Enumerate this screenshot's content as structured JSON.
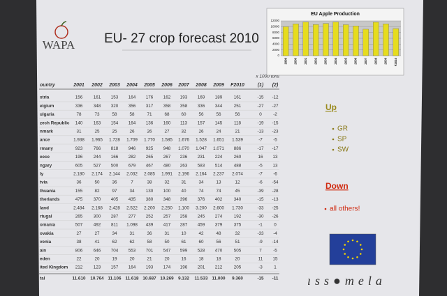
{
  "logo": "WAPA",
  "title": "EU- 27 crop forecast 2010",
  "unit_note": "x 1000 tons",
  "table": {
    "header": [
      "ountry",
      "2001",
      "2002",
      "2003",
      "2004",
      "2005",
      "2006",
      "2007",
      "2008",
      "2009",
      "F2010",
      "(1)",
      "(2)"
    ],
    "rows": [
      [
        "stria",
        "156",
        "161",
        "153",
        "164",
        "176",
        "162",
        "193",
        "169",
        "189",
        "161",
        "-15",
        "-12"
      ],
      [
        "elgium",
        "336",
        "348",
        "320",
        "356",
        "317",
        "358",
        "358",
        "336",
        "344",
        "251",
        "-27",
        "-27"
      ],
      [
        "ulgaria",
        "78",
        "73",
        "58",
        "58",
        "71",
        "68",
        "60",
        "56",
        "56",
        "56",
        "0",
        "-2"
      ],
      [
        "zech Republic",
        "140",
        "163",
        "154",
        "164",
        "136",
        "160",
        "113",
        "157",
        "145",
        "118",
        "-19",
        "-15"
      ],
      [
        "nmark",
        "31",
        "25",
        "25",
        "26",
        "26",
        "27",
        "32",
        "26",
        "24",
        "21",
        "-13",
        "-23"
      ],
      [
        "ance",
        "1.938",
        "1.965",
        "1.728",
        "1.709",
        "1.770",
        "1.585",
        "1.676",
        "1.528",
        "1.651",
        "1.539",
        "-7",
        "-5"
      ],
      [
        "rmany",
        "923",
        "766",
        "818",
        "946",
        "925",
        "948",
        "1.070",
        "1.047",
        "1.071",
        "886",
        "-17",
        "-17"
      ],
      [
        "eece",
        "196",
        "244",
        "166",
        "282",
        "265",
        "267",
        "236",
        "231",
        "224",
        "260",
        "16",
        "13"
      ],
      [
        "ngary",
        "605",
        "527",
        "500",
        "679",
        "467",
        "480",
        "263",
        "583",
        "514",
        "488",
        "-5",
        "13"
      ],
      [
        "ly",
        "2.180",
        "2.174",
        "2.144",
        "2.032",
        "2.085",
        "1.991",
        "2.196",
        "2.164",
        "2.237",
        "2.074",
        "-7",
        "-6"
      ],
      [
        "tvia",
        "36",
        "50",
        "36",
        "7",
        "38",
        "32",
        "31",
        "34",
        "13",
        "12",
        "-6",
        "-54"
      ],
      [
        "thuania",
        "155",
        "82",
        "97",
        "34",
        "130",
        "100",
        "40",
        "74",
        "74",
        "45",
        "-39",
        "-28"
      ],
      [
        "therlands",
        "475",
        "370",
        "405",
        "435",
        "380",
        "348",
        "396",
        "376",
        "402",
        "340",
        "-15",
        "-13"
      ],
      [
        "land",
        "2.484",
        "2.168",
        "2.428",
        "2.522",
        "2.200",
        "2.250",
        "1.100",
        "3.200",
        "2.600",
        "1.730",
        "-33",
        "-25"
      ],
      [
        "rtugal",
        "265",
        "300",
        "287",
        "277",
        "252",
        "257",
        "258",
        "245",
        "274",
        "192",
        "-30",
        "-26"
      ],
      [
        "omania",
        "507",
        "492",
        "811",
        "1.098",
        "439",
        "417",
        "287",
        "459",
        "379",
        "375",
        "-1",
        "0"
      ],
      [
        "ovakia",
        "27",
        "27",
        "34",
        "31",
        "36",
        "31",
        "10",
        "42",
        "48",
        "32",
        "-33",
        "-4"
      ],
      [
        "venia",
        "38",
        "41",
        "62",
        "62",
        "58",
        "50",
        "61",
        "60",
        "56",
        "51",
        "-9",
        "-14"
      ],
      [
        "ain",
        "806",
        "646",
        "704",
        "553",
        "701",
        "547",
        "599",
        "528",
        "470",
        "505",
        "7",
        "-5"
      ],
      [
        "eden",
        "22",
        "20",
        "19",
        "20",
        "21",
        "20",
        "16",
        "18",
        "18",
        "20",
        "11",
        "15"
      ],
      [
        "ited Kingdom",
        "212",
        "123",
        "157",
        "164",
        "193",
        "174",
        "196",
        "201",
        "212",
        "205",
        "-3",
        "1"
      ],
      [
        "tal",
        "11.610",
        "10.764",
        "11.106",
        "11.618",
        "10.687",
        "10.269",
        "9.132",
        "11.533",
        "11.000",
        "9.360",
        "-15",
        "-11"
      ]
    ]
  },
  "mini_chart": {
    "type": "bar",
    "title": "EU Apple Production",
    "categories": [
      "1999",
      "2000",
      "2001",
      "2002",
      "2003",
      "2004",
      "2005",
      "2006",
      "2007",
      "2008",
      "2009",
      "F2010"
    ],
    "values": [
      10000,
      11000,
      11610,
      10764,
      11106,
      11618,
      10687,
      10269,
      9132,
      11533,
      11000,
      9360
    ],
    "color": "#e6dc1e",
    "ylim": [
      0,
      12000
    ],
    "yticks": [
      0,
      2000,
      4000,
      6000,
      8000,
      10000,
      12000
    ],
    "grid": true
  },
  "up": {
    "label": "Up",
    "items": [
      "GR",
      "SP",
      "SW"
    ]
  },
  "down": {
    "label": "Down",
    "items": [
      "all others!"
    ]
  },
  "footer": "ıss●mela"
}
